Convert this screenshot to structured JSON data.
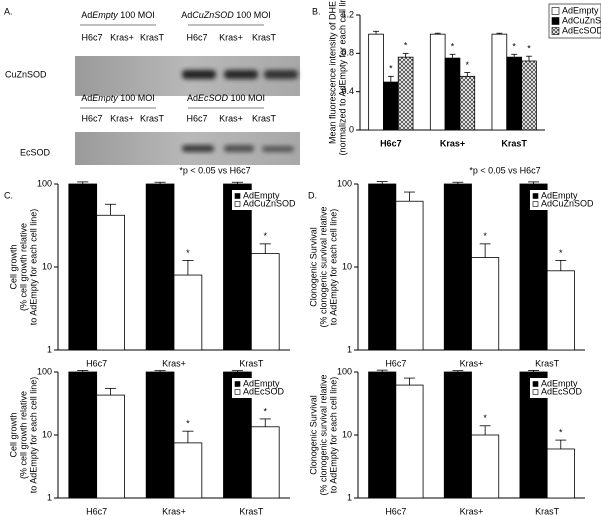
{
  "panel_labels": [
    "A.",
    "B.",
    "C.",
    "D."
  ],
  "notes": [
    "*p < 0.05 vs H6c7",
    "*p < 0.05 vs H6c7"
  ],
  "blot": {
    "blocks": [
      {
        "protein": "CuZnSOD",
        "groups": [
          {
            "prefix": "Ad",
            "name": "Empty",
            "suffix": "100 MOI",
            "lanes": [
              "H6c7",
              "Kras+",
              "KrasT"
            ]
          },
          {
            "prefix": "Ad",
            "name": "CuZnSOD",
            "suffix": "100 MOI",
            "lanes": [
              "H6c7",
              "Kras+",
              "KrasT"
            ]
          }
        ]
      },
      {
        "protein": "EcSOD",
        "groups": [
          {
            "prefix": "Ad",
            "name": "Empty",
            "suffix": "100 MOI",
            "lanes": [
              "H6c7",
              "Kras+",
              "KrasT"
            ]
          },
          {
            "prefix": "Ad",
            "name": "EcSOD",
            "suffix": "100 MOI",
            "lanes": [
              "H6c7",
              "Kras+",
              "KrasT"
            ]
          }
        ]
      }
    ]
  },
  "chart_data": [
    {
      "type": "bar",
      "ylabel": [
        "Mean fluorescence intensity of DHE",
        "(normalized to AdEmpty for each cell line)"
      ],
      "categories": [
        "H6c7",
        "Kras+",
        "KrasT"
      ],
      "series": [
        {
          "name": "AdEmpty",
          "color": "#ffffff",
          "values": [
            1.0,
            1.0,
            1.0
          ],
          "errors": [
            0.03,
            0.01,
            0.01
          ]
        },
        {
          "name": "AdCuZnSOD",
          "color": "#000000",
          "values": [
            0.5,
            0.75,
            0.76
          ],
          "errors": [
            0.06,
            0.04,
            0.03
          ],
          "significance": [
            "*",
            "*",
            "*"
          ]
        },
        {
          "name": "AdEcSOD",
          "color": "#777777",
          "pattern": "crosshatch",
          "values": [
            0.76,
            0.56,
            0.72
          ],
          "errors": [
            0.04,
            0.04,
            0.05
          ],
          "significance": [
            "*",
            "*",
            "*"
          ]
        }
      ],
      "ylim": [
        0,
        1.2
      ],
      "yticks": [
        0,
        0.4,
        0.8,
        1.2
      ],
      "log": false,
      "legend": "upper right"
    },
    {
      "type": "bar",
      "ylabel": [
        "Cell growth",
        "(% cell growth relative",
        "to AdEmpty for each cell line)"
      ],
      "categories": [
        "H6c7",
        "Kras+",
        "KrasT"
      ],
      "series": [
        {
          "name": "AdEmpty",
          "color": "#000000",
          "values": [
            100,
            100,
            100
          ],
          "errors": [
            6,
            5,
            5
          ]
        },
        {
          "name": "AdCuZnSOD",
          "color": "#ffffff",
          "values": [
            42,
            8,
            14.5
          ],
          "errors": [
            15,
            4,
            4.5
          ],
          "significance": [
            null,
            "*",
            "*"
          ]
        }
      ],
      "ylim": [
        1,
        100
      ],
      "yticks": [
        1,
        10,
        100
      ],
      "log": true,
      "legend": "upper right"
    },
    {
      "type": "bar",
      "ylabel": [
        "Cell growth",
        "(% cell growth relative",
        "to AdEmpty for each cell line)"
      ],
      "categories": [
        "H6c7",
        "Kras+",
        "KrasT"
      ],
      "series": [
        {
          "name": "AdEmpty",
          "color": "#000000",
          "values": [
            100,
            100,
            100
          ],
          "errors": [
            6,
            5,
            5
          ]
        },
        {
          "name": "AdEcSOD",
          "color": "#ffffff",
          "values": [
            43,
            7.5,
            13.5
          ],
          "errors": [
            12,
            4,
            4.5
          ],
          "significance": [
            null,
            "*",
            "*"
          ]
        }
      ],
      "ylim": [
        1,
        100
      ],
      "yticks": [
        1,
        10,
        100
      ],
      "log": true,
      "legend": "upper right"
    },
    {
      "type": "bar",
      "ylabel": [
        "Clonogenic Survival",
        "(% clonogenic survival relative",
        "to AdEmpty for each cell line)"
      ],
      "categories": [
        "H6c7",
        "Kras+",
        "KrasT"
      ],
      "series": [
        {
          "name": "AdEmpty",
          "color": "#000000",
          "values": [
            100,
            100,
            100
          ],
          "errors": [
            7,
            5,
            6
          ]
        },
        {
          "name": "AdCuZnSOD",
          "color": "#ffffff",
          "values": [
            62,
            13,
            9
          ],
          "errors": [
            18,
            6,
            3
          ],
          "significance": [
            null,
            "*",
            "*"
          ]
        }
      ],
      "ylim": [
        1,
        100
      ],
      "yticks": [
        1,
        10,
        100
      ],
      "log": true,
      "legend": "upper right"
    },
    {
      "type": "bar",
      "ylabel": [
        "Clonogenic Survival",
        "(% clonogenic survival relative",
        "to AdEmpty for each cell line)"
      ],
      "categories": [
        "H6c7",
        "Kras+",
        "KrasT"
      ],
      "series": [
        {
          "name": "AdEmpty",
          "color": "#000000",
          "values": [
            100,
            100,
            100
          ],
          "errors": [
            7,
            5,
            6
          ]
        },
        {
          "name": "AdEcSOD",
          "color": "#ffffff",
          "values": [
            62,
            10,
            6
          ],
          "errors": [
            18,
            4,
            2.3
          ],
          "significance": [
            null,
            "*",
            "*"
          ]
        }
      ],
      "ylim": [
        1,
        100
      ],
      "yticks": [
        1,
        10,
        100
      ],
      "log": true,
      "legend": "upper right"
    }
  ]
}
